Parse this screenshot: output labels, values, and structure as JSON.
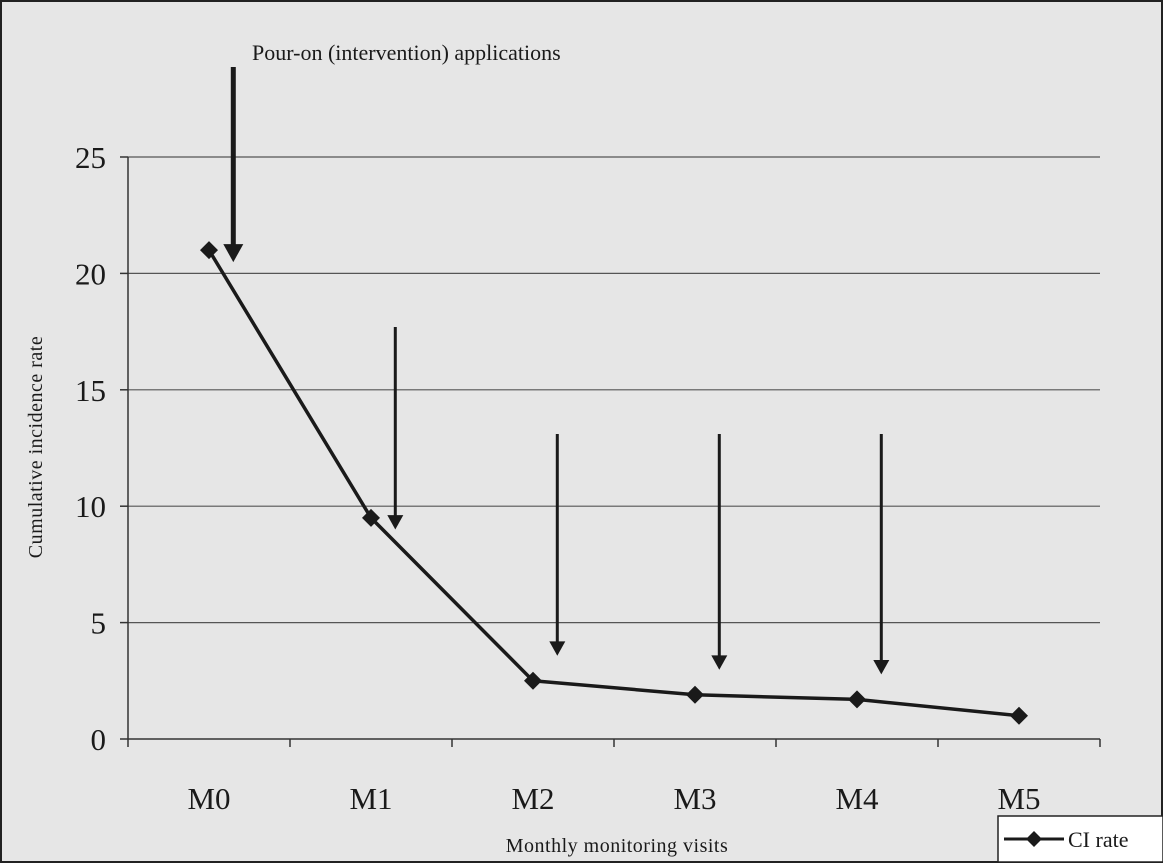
{
  "chart_data": {
    "type": "line",
    "title": "",
    "xlabel": "Monthly monitoring visits",
    "ylabel": "Cumulative incidence rate",
    "categories": [
      "M0",
      "M1",
      "M2",
      "M3",
      "M4",
      "M5"
    ],
    "series": [
      {
        "name": "CI rate",
        "values": [
          21,
          9.5,
          2.5,
          1.9,
          1.7,
          1.0
        ]
      }
    ],
    "ylim": [
      0,
      25
    ],
    "yticks": [
      0,
      5,
      10,
      15,
      20,
      25
    ],
    "ytick_labels": [
      "0",
      "5",
      "10",
      "15",
      "20",
      "25"
    ],
    "grid": true,
    "legend": "bottom-right",
    "annotation": "Pour-on (intervention) applications",
    "intervention_markers": [
      "M0",
      "M1",
      "M2",
      "M3",
      "M4"
    ],
    "colors": {
      "background": "#e6e6e6",
      "line": "#1a1a1a",
      "grid": "#555555"
    }
  }
}
